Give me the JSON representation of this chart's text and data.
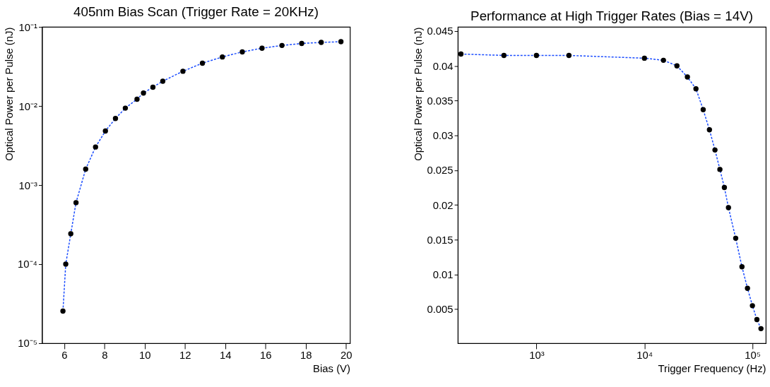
{
  "chart_data": [
    {
      "type": "line",
      "title": "405nm Bias Scan (Trigger Rate = 20KHz)",
      "xlabel": "Bias (V)",
      "ylabel": "Optical Power per Pulse (nJ)",
      "log": "y",
      "grid": false,
      "marker": "circle",
      "line_style": "dashed",
      "xlim": [
        4.9,
        20.2
      ],
      "xticks": [
        6,
        8,
        10,
        12,
        14,
        16,
        18,
        20
      ],
      "ylim": [
        1e-05,
        0.1
      ],
      "yticks": [
        {
          "value": 1e-05,
          "label": "10⁻⁵"
        },
        {
          "value": 0.0001,
          "label": "10⁻⁴"
        },
        {
          "value": 0.001,
          "label": "10⁻³"
        },
        {
          "value": 0.01,
          "label": "10⁻²"
        },
        {
          "value": 0.1,
          "label": "10⁻¹"
        }
      ],
      "series": [
        {
          "color": "#1a4cff",
          "colors": [
            "#000000",
            "#000000",
            "#000000",
            "#000000",
            "#000000",
            "#000000",
            "#000000",
            "#000000",
            "#000000",
            "#000000",
            "#000000",
            "#000000",
            "#000000",
            "#000000",
            "#000000",
            "#000000",
            "#000000",
            "#000000",
            "#000000",
            "#000000",
            "#000000",
            "#000000"
          ],
          "x": [
            5.94,
            6.08,
            6.33,
            6.59,
            7.07,
            7.56,
            8.05,
            8.55,
            9.04,
            9.62,
            9.94,
            10.41,
            10.9,
            11.9,
            12.87,
            13.86,
            14.85,
            15.83,
            16.82,
            17.8,
            18.77,
            19.75
          ],
          "values": [
            2.55e-05,
            0.0001,
            0.000242,
            0.0006,
            0.00159,
            0.00303,
            0.00483,
            0.00695,
            0.0094,
            0.0122,
            0.0146,
            0.0173,
            0.0206,
            0.0275,
            0.0348,
            0.0417,
            0.0483,
            0.0538,
            0.0583,
            0.0618,
            0.0637,
            0.065
          ]
        }
      ]
    },
    {
      "type": "line",
      "title": "Performance at High Trigger Rates (Bias = 14V)",
      "xlabel": "Trigger Frequency (Hz)",
      "ylabel": "Optical Power per Pulse (nJ)",
      "log": "x",
      "grid": false,
      "marker": "circle",
      "line_style": "dashed",
      "xlim": [
        187,
        133000
      ],
      "xticks": [
        {
          "value": 1000,
          "label": "10³"
        },
        {
          "value": 10000,
          "label": "10⁴"
        },
        {
          "value": 100000,
          "label": "10⁵"
        }
      ],
      "ylim": [
        0.0001,
        0.0456
      ],
      "yticks": [
        0.005,
        0.01,
        0.015,
        0.02,
        0.025,
        0.03,
        0.035,
        0.04,
        0.045
      ],
      "series": [
        {
          "color": "#1a4cff",
          "colors": [
            "#000000",
            "#000000",
            "#000000",
            "#000000",
            "#000000",
            "#000000",
            "#000000",
            "#000000",
            "#000000",
            "#000000",
            "#000000",
            "#000000",
            "#000000",
            "#000000",
            "#000000",
            "#000000",
            "#000000",
            "#000000",
            "#000000",
            "#000000",
            "#000000"
          ],
          "x": [
            200,
            500,
            1000,
            2000,
            10000,
            15000,
            20000,
            25000,
            30000,
            35000,
            40000,
            45000,
            50000,
            55000,
            60000,
            70000,
            80000,
            90000,
            100000,
            110000,
            120000
          ],
          "values": [
            0.0417,
            0.0415,
            0.0415,
            0.0415,
            0.0411,
            0.0408,
            0.04,
            0.0384,
            0.0367,
            0.0337,
            0.0308,
            0.0279,
            0.0251,
            0.0225,
            0.0196,
            0.0152,
            0.0111,
            0.008,
            0.0055,
            0.0035,
            0.0022
          ]
        }
      ]
    }
  ]
}
